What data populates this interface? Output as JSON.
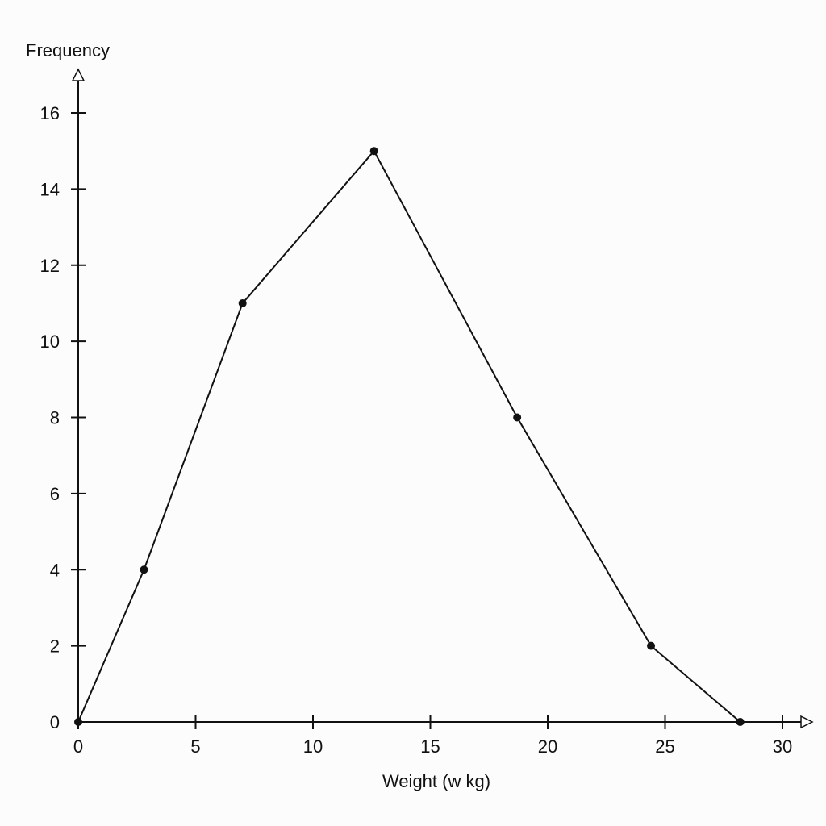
{
  "chart_data": {
    "type": "line",
    "title": "",
    "xlabel": "Weight (w kg)",
    "ylabel": "Frequency",
    "xlim": [
      0,
      30
    ],
    "ylim": [
      0,
      16
    ],
    "x_ticks": [
      0,
      5,
      10,
      15,
      20,
      25,
      30
    ],
    "y_ticks": [
      0,
      2,
      4,
      6,
      8,
      10,
      12,
      14,
      16
    ],
    "grid": false,
    "series": [
      {
        "x": [
          0,
          2.8,
          7,
          12.6,
          18.7,
          24.4,
          28.2
        ],
        "y": [
          0,
          4,
          11,
          15,
          8,
          2,
          0
        ],
        "color": "#111111",
        "marker": "dot"
      }
    ]
  }
}
